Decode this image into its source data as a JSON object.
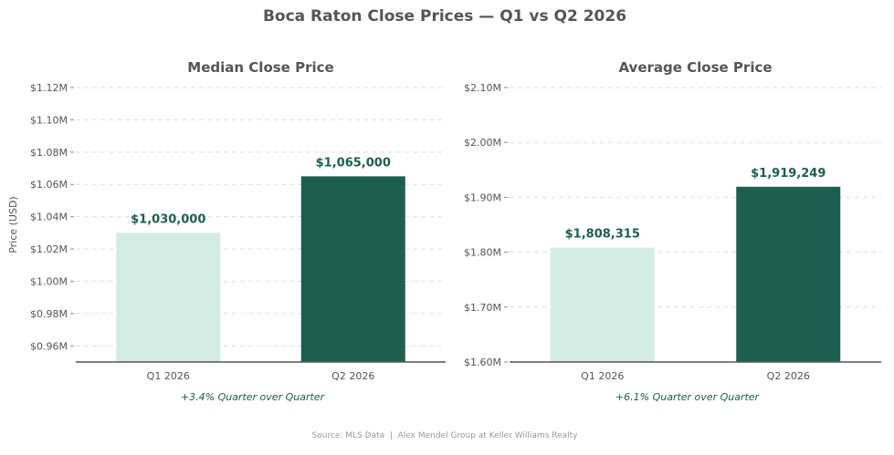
{
  "figure": {
    "title": "Boca Raton Close Prices — Q1 vs Q2 2026",
    "footer": "Source: MLS Data  |  Alex Mendel Group at Keller Williams Realty"
  },
  "colors": {
    "q1_bar": "#d4ede4",
    "q2_bar": "#1e5e4e",
    "label_green": "#1e5e4e",
    "text_gray": "#555555",
    "grid": "#dddddd",
    "axis": "#555555"
  },
  "chart_data": [
    {
      "type": "bar",
      "title": "Median Close Price",
      "ylabel": "Price (USD)",
      "xlabel": "",
      "categories": [
        "Q1 2026",
        "Q2 2026"
      ],
      "values": [
        1030000,
        1065000
      ],
      "value_labels": [
        "$1,030,000",
        "$1,065,000"
      ],
      "ylim": [
        950000,
        1120000
      ],
      "yticks": [
        960000,
        980000,
        1000000,
        1020000,
        1040000,
        1060000,
        1080000,
        1100000,
        1120000
      ],
      "ytick_labels": [
        "$0.96M",
        "$0.98M",
        "$1.00M",
        "$1.02M",
        "$1.04M",
        "$1.06M",
        "$1.08M",
        "$1.10M",
        "$1.12M"
      ],
      "annotation": "+3.4% Quarter over Quarter",
      "grid": true,
      "grid_style": "dashed-horizontal"
    },
    {
      "type": "bar",
      "title": "Average Close Price",
      "ylabel": "",
      "xlabel": "",
      "categories": [
        "Q1 2026",
        "Q2 2026"
      ],
      "values": [
        1808315,
        1919249
      ],
      "value_labels": [
        "$1,808,315",
        "$1,919,249"
      ],
      "ylim": [
        1600000,
        2100000
      ],
      "yticks": [
        1600000,
        1700000,
        1800000,
        1900000,
        2000000,
        2100000
      ],
      "ytick_labels": [
        "$1.60M",
        "$1.70M",
        "$1.80M",
        "$1.90M",
        "$2.00M",
        "$2.10M"
      ],
      "annotation": "+6.1% Quarter over Quarter",
      "grid": true,
      "grid_style": "dashed-horizontal"
    }
  ]
}
